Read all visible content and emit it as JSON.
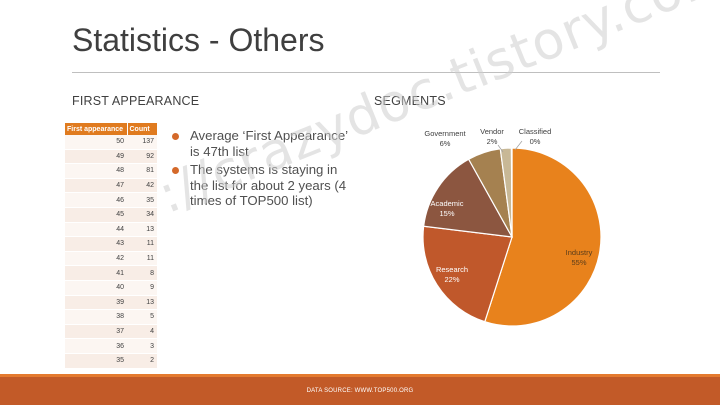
{
  "slide": {
    "title": "Statistics - Others",
    "left_heading": "FIRST APPEARANCE",
    "right_heading": "SEGMENTS",
    "watermark": "://crazydoc.tistory.com",
    "footer": "DATA SOURCE: WWW.TOP500.ORG"
  },
  "table": {
    "headers": [
      "First appearance",
      "Count"
    ],
    "rows": [
      [
        "50",
        "137"
      ],
      [
        "49",
        "92"
      ],
      [
        "48",
        "81"
      ],
      [
        "47",
        "42"
      ],
      [
        "46",
        "35"
      ],
      [
        "45",
        "34"
      ],
      [
        "44",
        "13"
      ],
      [
        "43",
        "11"
      ],
      [
        "42",
        "11"
      ],
      [
        "41",
        "8"
      ],
      [
        "40",
        "9"
      ],
      [
        "39",
        "13"
      ],
      [
        "38",
        "5"
      ],
      [
        "37",
        "4"
      ],
      [
        "36",
        "3"
      ],
      [
        "35",
        "2"
      ]
    ]
  },
  "bullets": [
    "Average ‘First Appearance’ is 47th list",
    "The systems is staying in the list for about 2 years (4 times of TOP500 list)"
  ],
  "colors": {
    "accent": "#e07b1f",
    "footer": "#c25a28",
    "bullet": "#d4692a"
  },
  "chart_data": {
    "type": "pie",
    "title": "",
    "slices": [
      {
        "label": "Industry",
        "value": 55,
        "pct_label": "55%",
        "color": "#e8821c"
      },
      {
        "label": "Research",
        "value": 22,
        "pct_label": "22%",
        "color": "#c0582b"
      },
      {
        "label": "Academic",
        "value": 15,
        "pct_label": "15%",
        "color": "#8c5640"
      },
      {
        "label": "Government",
        "value": 6,
        "pct_label": "6%",
        "color": "#a58150"
      },
      {
        "label": "Vendor",
        "value": 2,
        "pct_label": "2%",
        "color": "#c8b896"
      },
      {
        "label": "Classified",
        "value": 0.1,
        "pct_label": "0%",
        "color": "#e3d8c0"
      }
    ]
  }
}
